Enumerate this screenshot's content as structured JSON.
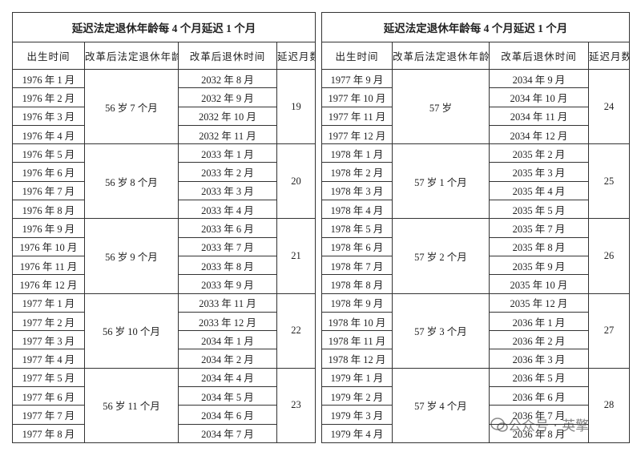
{
  "tables": [
    {
      "title": "延迟法定退休年龄每 4 个月延迟 1 个月",
      "headers": [
        "出生时间",
        "改革后法定退休年龄",
        "改革后退休时间",
        "延迟月数"
      ],
      "groups": [
        {
          "rows": [
            [
              "1976 年 1 月",
              "2032 年 8 月"
            ],
            [
              "1976 年 2 月",
              "2032 年 9 月"
            ],
            [
              "1976 年 3 月",
              "2032 年 10 月"
            ],
            [
              "1976 年 4 月",
              "2032 年 11 月"
            ]
          ],
          "age": "56 岁 7 个月",
          "delay": 19
        },
        {
          "rows": [
            [
              "1976 年 5 月",
              "2033 年 1 月"
            ],
            [
              "1976 年 6 月",
              "2033 年 2 月"
            ],
            [
              "1976 年 7 月",
              "2033 年 3 月"
            ],
            [
              "1976 年 8 月",
              "2033 年 4 月"
            ]
          ],
          "age": "56 岁 8 个月",
          "delay": 20
        },
        {
          "rows": [
            [
              "1976 年 9 月",
              "2033 年 6 月"
            ],
            [
              "1976 年 10 月",
              "2033 年 7 月"
            ],
            [
              "1976 年 11 月",
              "2033 年 8 月"
            ],
            [
              "1976 年 12 月",
              "2033 年 9 月"
            ]
          ],
          "age": "56 岁 9 个月",
          "delay": 21
        },
        {
          "rows": [
            [
              "1977 年 1 月",
              "2033 年 11 月"
            ],
            [
              "1977 年 2 月",
              "2033 年 12 月"
            ],
            [
              "1977 年 3 月",
              "2034 年 1 月"
            ],
            [
              "1977 年 4 月",
              "2034 年 2 月"
            ]
          ],
          "age": "56 岁 10 个月",
          "delay": 22
        },
        {
          "rows": [
            [
              "1977 年 5 月",
              "2034 年 4 月"
            ],
            [
              "1977 年 6 月",
              "2034 年 5 月"
            ],
            [
              "1977 年 7 月",
              "2034 年 6 月"
            ],
            [
              "1977 年 8 月",
              "2034 年 7 月"
            ]
          ],
          "age": "56 岁 11 个月",
          "delay": 23
        }
      ]
    },
    {
      "title": "延迟法定退休年龄每 4 个月延迟 1 个月",
      "headers": [
        "出生时间",
        "改革后法定退休年龄",
        "改革后退休时间",
        "延迟月数"
      ],
      "groups": [
        {
          "rows": [
            [
              "1977 年 9 月",
              "2034 年 9 月"
            ],
            [
              "1977 年 10 月",
              "2034 年 10 月"
            ],
            [
              "1977 年 11 月",
              "2034 年 11 月"
            ],
            [
              "1977 年 12 月",
              "2034 年 12 月"
            ]
          ],
          "age": "57 岁",
          "delay": 24
        },
        {
          "rows": [
            [
              "1978 年 1 月",
              "2035 年 2 月"
            ],
            [
              "1978 年 2 月",
              "2035 年 3 月"
            ],
            [
              "1978 年 3 月",
              "2035 年 4 月"
            ],
            [
              "1978 年 4 月",
              "2035 年 5 月"
            ]
          ],
          "age": "57 岁 1 个月",
          "delay": 25
        },
        {
          "rows": [
            [
              "1978 年 5 月",
              "2035 年 7 月"
            ],
            [
              "1978 年 6 月",
              "2035 年 8 月"
            ],
            [
              "1978 年 7 月",
              "2035 年 9 月"
            ],
            [
              "1978 年 8 月",
              "2035 年 10 月"
            ]
          ],
          "age": "57 岁 2 个月",
          "delay": 26
        },
        {
          "rows": [
            [
              "1978 年 9 月",
              "2035 年 12 月"
            ],
            [
              "1978 年 10 月",
              "2036 年 1 月"
            ],
            [
              "1978 年 11 月",
              "2036 年 2 月"
            ],
            [
              "1978 年 12 月",
              "2036 年 3 月"
            ]
          ],
          "age": "57 岁 3 个月",
          "delay": 27
        },
        {
          "rows": [
            [
              "1979 年 1 月",
              "2036 年 5 月"
            ],
            [
              "1979 年 2 月",
              "2036 年 6 月"
            ],
            [
              "1979 年 3 月",
              "2036 年 7 月"
            ],
            [
              "1979 年 4 月",
              "2036 年 8 月"
            ]
          ],
          "age": "57 岁 4 个月",
          "delay": 28
        }
      ]
    }
  ],
  "watermark": "公众号 · 英擎"
}
